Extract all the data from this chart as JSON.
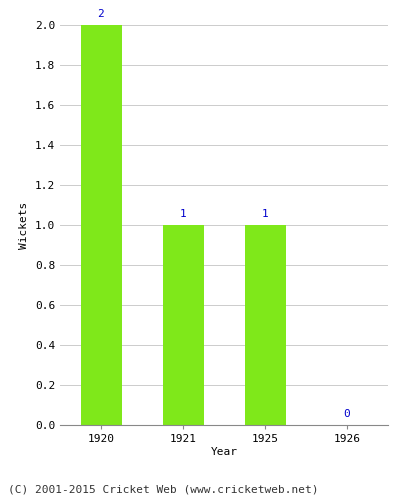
{
  "categories": [
    "1920",
    "1921",
    "1925",
    "1926"
  ],
  "values": [
    2,
    1,
    1,
    0
  ],
  "bar_color": "#7FE81A",
  "label_color": "#0000CC",
  "ylabel": "Wickets",
  "xlabel": "Year",
  "ylim": [
    0,
    2.0
  ],
  "yticks": [
    0.0,
    0.2,
    0.4,
    0.6,
    0.8,
    1.0,
    1.2,
    1.4,
    1.6,
    1.8,
    2.0
  ],
  "footnote": "(C) 2001-2015 Cricket Web (www.cricketweb.net)",
  "bar_width": 0.5,
  "label_fontsize": 8,
  "axis_fontsize": 8,
  "footnote_fontsize": 8,
  "plot_background": "#ffffff",
  "grid_color": "#cccccc",
  "spine_color": "#888888"
}
